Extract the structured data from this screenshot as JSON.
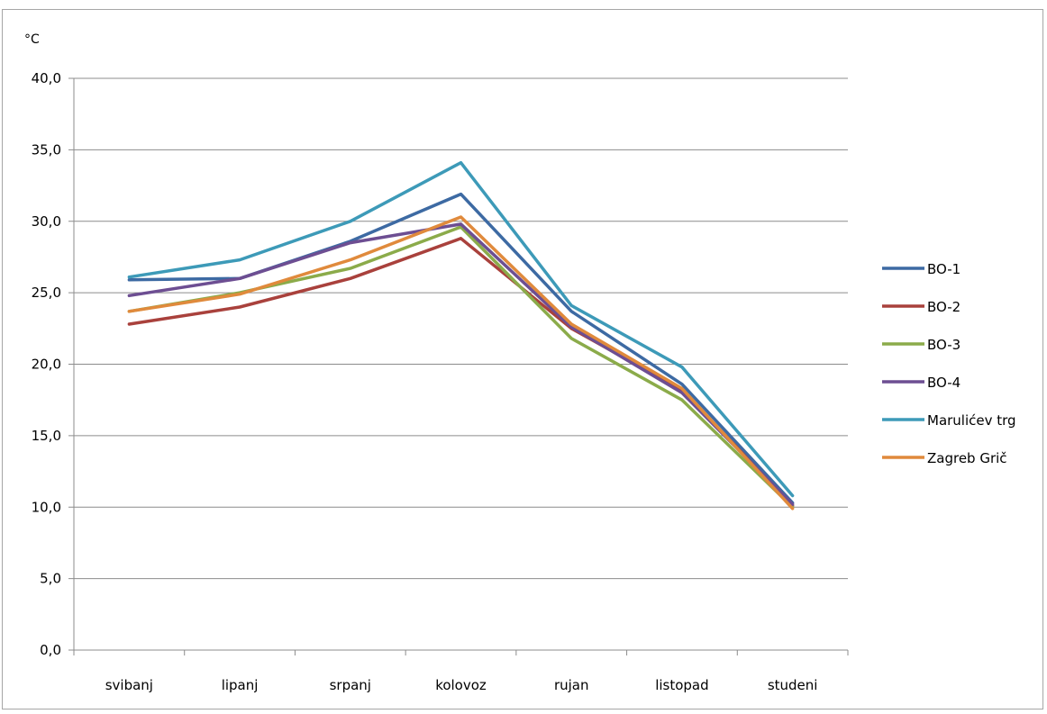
{
  "chart_data": {
    "type": "line",
    "title": "",
    "xlabel": "",
    "ylabel": "°C",
    "ylim": [
      0,
      40
    ],
    "yticks": [
      "0,0",
      "5,0",
      "10,0",
      "15,0",
      "20,0",
      "25,0",
      "30,0",
      "35,0",
      "40,0"
    ],
    "ytick_values": [
      0,
      5,
      10,
      15,
      20,
      25,
      30,
      35,
      40
    ],
    "grid": true,
    "legend_position": "right",
    "categories": [
      "svibanj",
      "lipanj",
      "srpanj",
      "kolovoz",
      "rujan",
      "listopad",
      "studeni"
    ],
    "series": [
      {
        "name": "BO-1",
        "color": "#3d6aa3",
        "values": [
          25.9,
          26.0,
          28.6,
          31.9,
          23.7,
          18.6,
          10.3
        ]
      },
      {
        "name": "BO-2",
        "color": "#a9413c",
        "values": [
          22.8,
          24.0,
          26.0,
          28.8,
          22.5,
          18.2,
          10.1
        ]
      },
      {
        "name": "BO-3",
        "color": "#8bab4a",
        "values": [
          23.7,
          25.0,
          26.7,
          29.6,
          21.8,
          17.5,
          10.0
        ]
      },
      {
        "name": "BO-4",
        "color": "#6d4e92",
        "values": [
          24.8,
          26.0,
          28.5,
          29.8,
          22.6,
          18.0,
          10.2
        ]
      },
      {
        "name": "Marulićev trg",
        "color": "#3d9ab8",
        "values": [
          26.1,
          27.3,
          30.0,
          34.1,
          24.1,
          19.8,
          10.8
        ]
      },
      {
        "name": "Zagreb Grič",
        "color": "#e08a3c",
        "values": [
          23.7,
          24.9,
          27.3,
          30.3,
          22.8,
          18.3,
          9.9
        ]
      }
    ]
  }
}
